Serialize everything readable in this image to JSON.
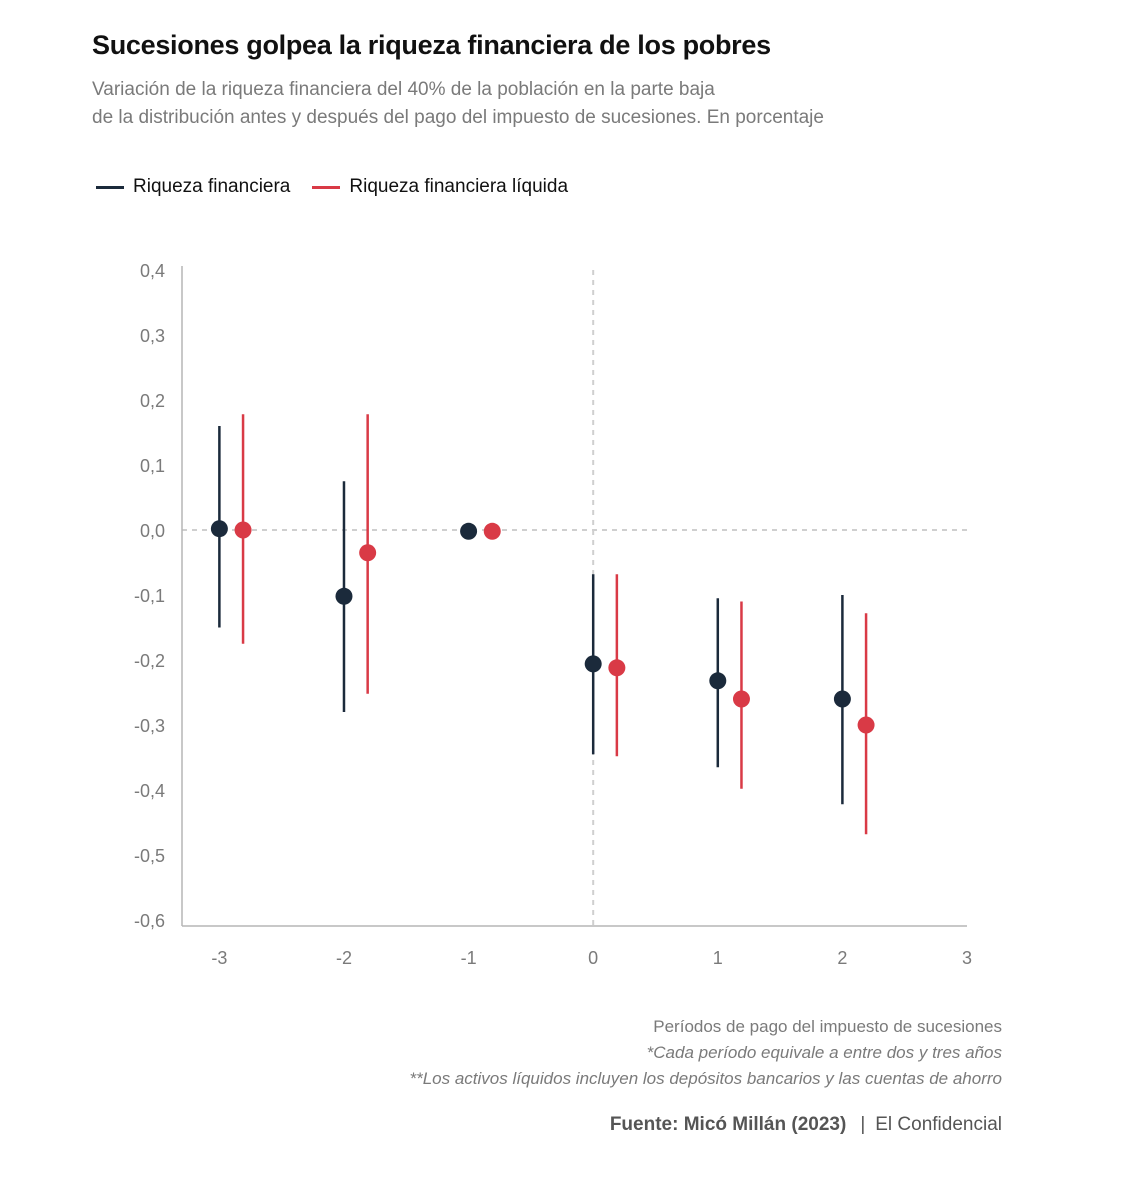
{
  "header": {
    "title": "Sucesiones golpea la riqueza financiera de los pobres",
    "subtitle_line1": "Variación de la riqueza financiera del 40% de la población en la parte baja",
    "subtitle_line2": "de la distribución antes y después del pago del impuesto de sucesiones. En porcentaje"
  },
  "legend": [
    {
      "label": "Riqueza financiera",
      "color": "#1b2a3b"
    },
    {
      "label": "Riqueza financiera líquida",
      "color": "#d93a46"
    }
  ],
  "chart_data": {
    "type": "scatter",
    "subtype": "point-with-error-bars",
    "x_ticks": [
      "-3",
      "-2",
      "-1",
      "0",
      "1",
      "2",
      "3"
    ],
    "y_ticks": [
      "0,4",
      "0,3",
      "0,2",
      "0,1",
      "0,0",
      "-0,1",
      "-0,2",
      "-0,3",
      "-0,4",
      "-0,5",
      "-0,6"
    ],
    "xlim": [
      -3.3,
      3
    ],
    "ylim": [
      -0.6,
      0.4
    ],
    "reference_lines": {
      "x": 0,
      "y": 0,
      "style": "dashed"
    },
    "series": [
      {
        "name": "Riqueza financiera",
        "color": "#1b2a3b",
        "points": [
          {
            "x": -3,
            "y": 0.002,
            "low": -0.15,
            "high": 0.16
          },
          {
            "x": -2,
            "y": -0.102,
            "low": -0.28,
            "high": 0.075
          },
          {
            "x": -1,
            "y": -0.002,
            "low": null,
            "high": null
          },
          {
            "x": 0,
            "y": -0.206,
            "low": -0.345,
            "high": -0.068
          },
          {
            "x": 1,
            "y": -0.232,
            "low": -0.365,
            "high": -0.105
          },
          {
            "x": 2,
            "y": -0.26,
            "low": -0.422,
            "high": -0.1
          }
        ]
      },
      {
        "name": "Riqueza financiera líquida",
        "color": "#d93a46",
        "points": [
          {
            "x": -3,
            "y": 0.0,
            "low": -0.175,
            "high": 0.178
          },
          {
            "x": -2,
            "y": -0.035,
            "low": -0.252,
            "high": 0.178
          },
          {
            "x": -1,
            "y": -0.002,
            "low": null,
            "high": null
          },
          {
            "x": 0,
            "y": -0.212,
            "low": -0.348,
            "high": -0.068
          },
          {
            "x": 1,
            "y": -0.26,
            "low": -0.398,
            "high": -0.11
          },
          {
            "x": 2,
            "y": -0.3,
            "low": -0.468,
            "high": -0.128
          }
        ]
      }
    ]
  },
  "notes": {
    "xlabel": "Períodos de pago del impuesto de sucesiones",
    "note1": "*Cada período equivale a entre dos y tres años",
    "note2": "**Los activos líquidos incluyen los depósitos bancarios y las cuentas de ahorro"
  },
  "footer": {
    "source": "Fuente: Micó Millán (2023)",
    "separator": "|",
    "publisher": "El Confidencial"
  }
}
